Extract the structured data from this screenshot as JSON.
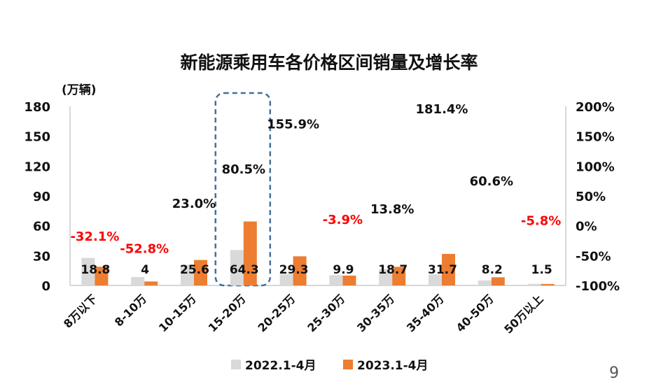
{
  "page_number": "9",
  "chart_data": {
    "type": "bar",
    "title": "新能源乘用车各价格区间销量及增长率",
    "y_unit_label": "(万辆)",
    "ylim": [
      0,
      180
    ],
    "yticks": [
      0,
      30,
      60,
      90,
      120,
      150,
      180
    ],
    "y2lim": [
      -100,
      200
    ],
    "y2ticks": [
      "-100%",
      "-50%",
      "0%",
      "50%",
      "100%",
      "150%",
      "200%"
    ],
    "categories": [
      "8万以下",
      "8-10万",
      "10-15万",
      "15-20万",
      "20-25万",
      "25-30万",
      "30-35万",
      "35-40万",
      "40-50万",
      "50万以上"
    ],
    "series": [
      {
        "name": "2022.1-4月",
        "color": "#d9d9d9",
        "values": [
          27.7,
          8.5,
          20.8,
          35.6,
          11.4,
          10.3,
          16.4,
          11.1,
          5.1,
          1.6
        ]
      },
      {
        "name": "2023.1-4月",
        "color": "#ed7d31",
        "values": [
          18.8,
          4,
          25.6,
          64.3,
          29.3,
          9.9,
          18.7,
          31.7,
          8.2,
          1.5
        ]
      }
    ],
    "value_labels": [
      "18.8",
      "4",
      "25.6",
      "64.3",
      "29.3",
      "9.9",
      "18.7",
      "31.7",
      "8.2",
      "1.5"
    ],
    "growth": [
      -32.1,
      -52.8,
      23.0,
      80.5,
      155.9,
      -3.9,
      13.8,
      181.4,
      60.6,
      -5.8
    ],
    "growth_labels": [
      "-32.1%",
      "-52.8%",
      "23.0%",
      "80.5%",
      "155.9%",
      "-3.9%",
      "13.8%",
      "181.4%",
      "60.6%",
      "-5.8%"
    ],
    "negative_color": "#ff0000",
    "highlight_category": "15-20万",
    "highlight_color": "#41719c",
    "grid": false,
    "legend_position": "bottom"
  }
}
